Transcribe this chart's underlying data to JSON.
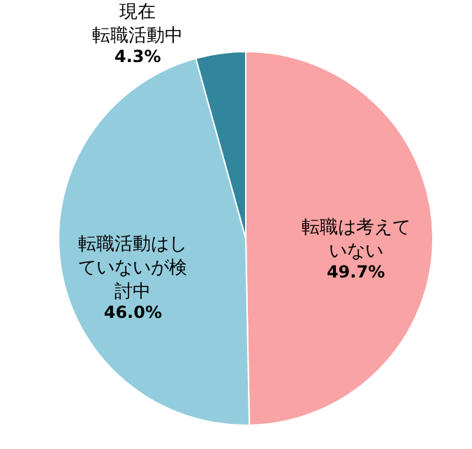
{
  "chart_data": {
    "type": "pie",
    "categories": [
      "転職は考えていない",
      "転職活動はしていないが検討中",
      "現在転職活動中"
    ],
    "values": [
      49.7,
      46.0,
      4.3
    ],
    "colors": [
      "#f9a3a4",
      "#93cddd",
      "#31859c"
    ],
    "value_labels": [
      "49.7%",
      "46.0%",
      "4.3%"
    ]
  }
}
